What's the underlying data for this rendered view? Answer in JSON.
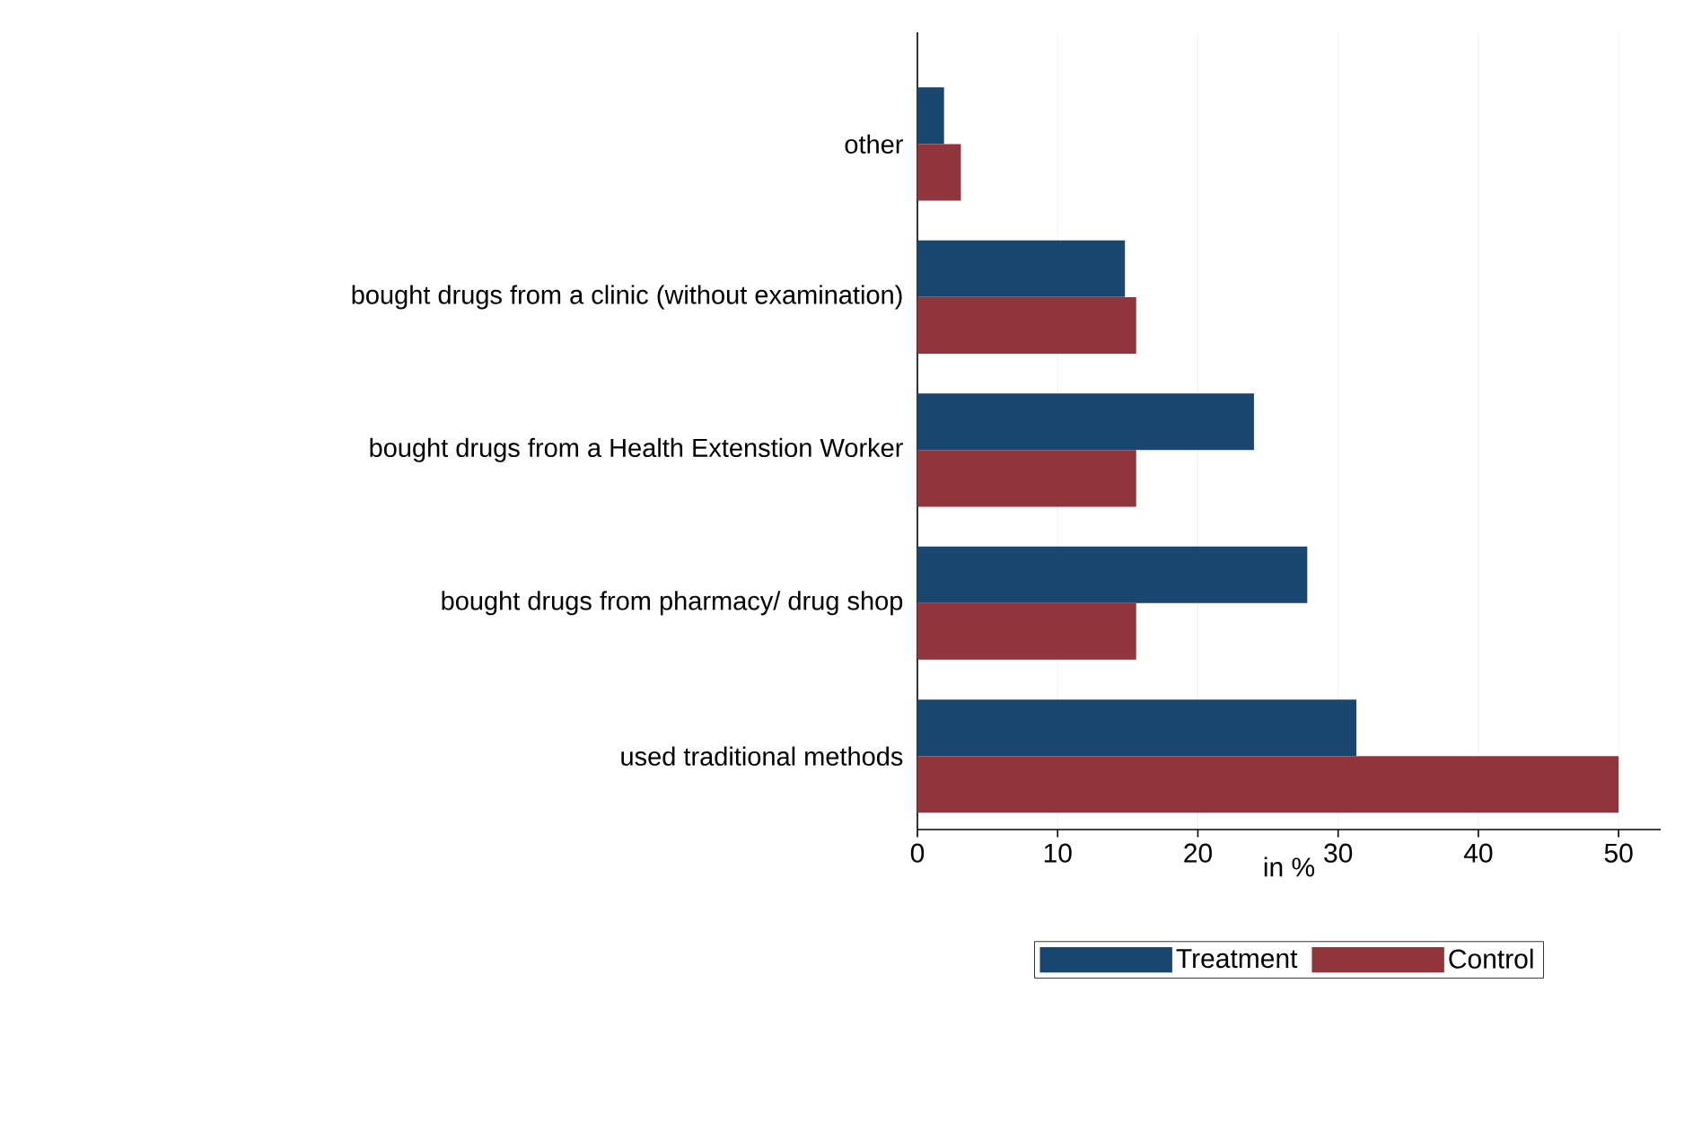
{
  "chart_data": {
    "type": "bar",
    "orientation": "horizontal",
    "categories": [
      "other",
      "bought drugs from a clinic (without examination)",
      "bought drugs from a  Health Extenstion Worker",
      "bought drugs from pharmacy/ drug shop",
      "used traditional methods"
    ],
    "series": [
      {
        "name": "Treatment",
        "color": "#1a476f",
        "values": [
          1.9,
          14.8,
          24.0,
          27.8,
          31.3
        ]
      },
      {
        "name": "Control",
        "color": "#90353b",
        "values": [
          3.1,
          15.6,
          15.6,
          15.6,
          50.0
        ]
      }
    ],
    "xlabel": "in %",
    "xlim": [
      0,
      53
    ],
    "xticks": [
      0,
      10,
      20,
      30,
      40,
      50
    ],
    "grid": "x",
    "legend": "bottom"
  }
}
